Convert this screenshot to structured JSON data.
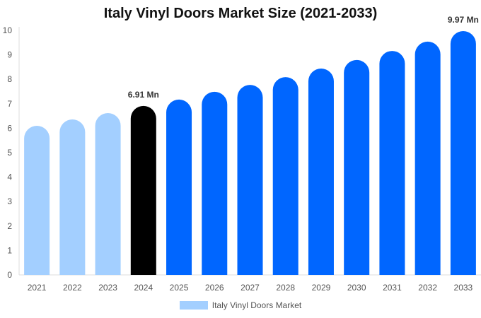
{
  "chart_data": {
    "type": "bar",
    "title": "Italy Vinyl Doors Market Size (2021-2033)",
    "xlabel": "",
    "ylabel": "",
    "ylim": [
      0,
      10
    ],
    "yticks": [
      "0",
      "1",
      "2",
      "3",
      "4",
      "5",
      "6",
      "7",
      "8",
      "9",
      "10"
    ],
    "categories": [
      "2021",
      "2022",
      "2023",
      "2024",
      "2025",
      "2026",
      "2027",
      "2028",
      "2029",
      "2030",
      "2031",
      "2032",
      "2033"
    ],
    "series": [
      {
        "name": "Italy Vinyl Doors Market",
        "values": [
          6.1,
          6.36,
          6.62,
          6.91,
          7.17,
          7.49,
          7.77,
          8.09,
          8.44,
          8.79,
          9.16,
          9.54,
          9.97
        ]
      }
    ],
    "colors": [
      "#a3cfff",
      "#a3cfff",
      "#a3cfff",
      "#000000",
      "#0066ff",
      "#0066ff",
      "#0066ff",
      "#0066ff",
      "#0066ff",
      "#0066ff",
      "#0066ff",
      "#0066ff",
      "#0066ff"
    ],
    "data_labels": {
      "3": "6.91 Mn",
      "12": "9.97 Mn"
    },
    "legend": "bottom",
    "grid": false
  }
}
